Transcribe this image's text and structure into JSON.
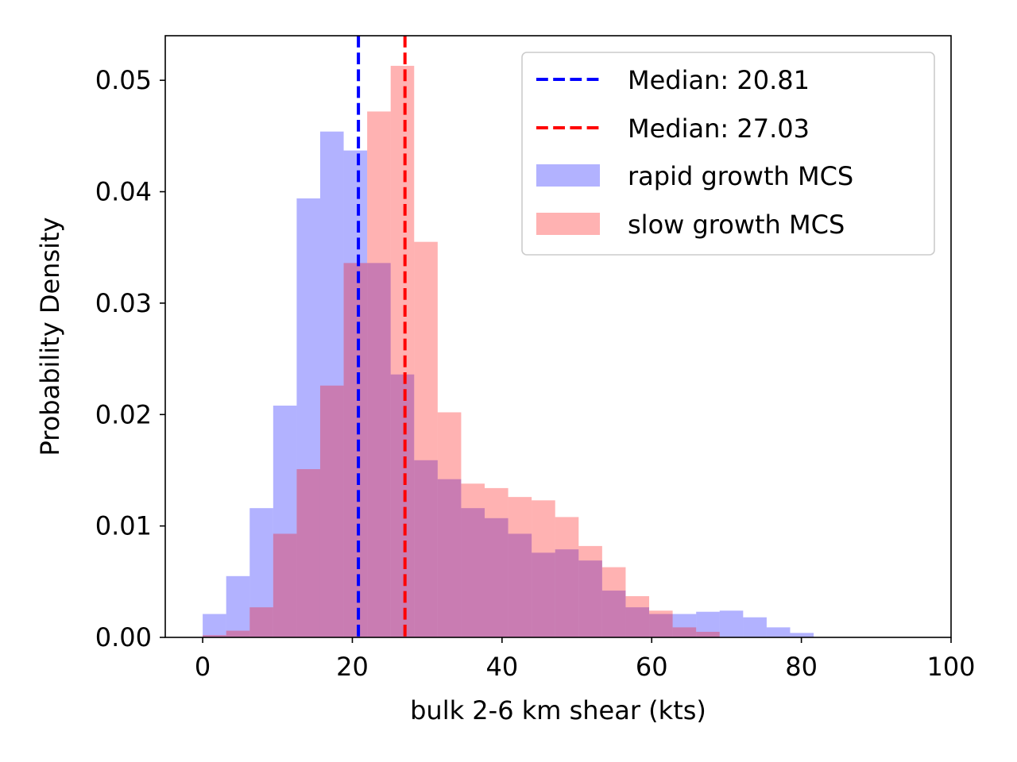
{
  "chart_data": {
    "type": "bar",
    "xlabel": "bulk 2-6 km shear (kts)",
    "ylabel": "Probability Density",
    "xlim": [
      -5,
      100
    ],
    "ylim": [
      0,
      0.054
    ],
    "x_ticks": [
      0,
      20,
      40,
      60,
      80,
      100
    ],
    "x_tick_labels": [
      "0",
      "20",
      "40",
      "60",
      "80",
      "100"
    ],
    "y_ticks": [
      0.0,
      0.01,
      0.02,
      0.03,
      0.04,
      0.05
    ],
    "y_tick_labels": [
      "0.00",
      "0.01",
      "0.02",
      "0.03",
      "0.04",
      "0.05"
    ],
    "grid": false,
    "legend_position": "top-right",
    "series": [
      {
        "name": "rapid growth MCS",
        "color": "#0000ff",
        "opacity": 0.3,
        "bin_edges": [
          0.0,
          3.14,
          6.28,
          9.42,
          12.56,
          15.7,
          18.84,
          21.98,
          25.12,
          28.26,
          31.4,
          34.54,
          37.68,
          40.82,
          43.96,
          47.1,
          50.24,
          53.38,
          56.52,
          59.66,
          62.8,
          65.94,
          69.08,
          72.22,
          75.36,
          78.5,
          81.64
        ],
        "values": [
          0.0021,
          0.0055,
          0.0116,
          0.0208,
          0.0394,
          0.0454,
          0.0437,
          0.0336,
          0.0236,
          0.0159,
          0.0142,
          0.0116,
          0.0107,
          0.0093,
          0.0076,
          0.0079,
          0.0069,
          0.0042,
          0.0027,
          0.0021,
          0.0021,
          0.0023,
          0.0024,
          0.0018,
          0.0009,
          0.0004
        ]
      },
      {
        "name": "slow growth MCS",
        "color": "#ff0000",
        "opacity": 0.3,
        "bin_edges": [
          0.0,
          3.14,
          6.28,
          9.42,
          12.56,
          15.7,
          18.84,
          21.98,
          25.12,
          28.26,
          31.4,
          34.54,
          37.68,
          40.82,
          43.96,
          47.1,
          50.24,
          53.38,
          56.52,
          59.66,
          62.8,
          65.94,
          69.08
        ],
        "values": [
          0.0002,
          0.0006,
          0.0027,
          0.0093,
          0.0151,
          0.0226,
          0.0336,
          0.0472,
          0.0513,
          0.0355,
          0.0202,
          0.0138,
          0.0134,
          0.0126,
          0.0123,
          0.0108,
          0.0082,
          0.0063,
          0.0037,
          0.0024,
          0.0009,
          0.0005
        ]
      }
    ],
    "median_lines": [
      {
        "value": 20.81,
        "color": "#0000ff",
        "label": "Median: 20.81"
      },
      {
        "value": 27.03,
        "color": "#ff0000",
        "label": "Median: 27.03"
      }
    ]
  }
}
